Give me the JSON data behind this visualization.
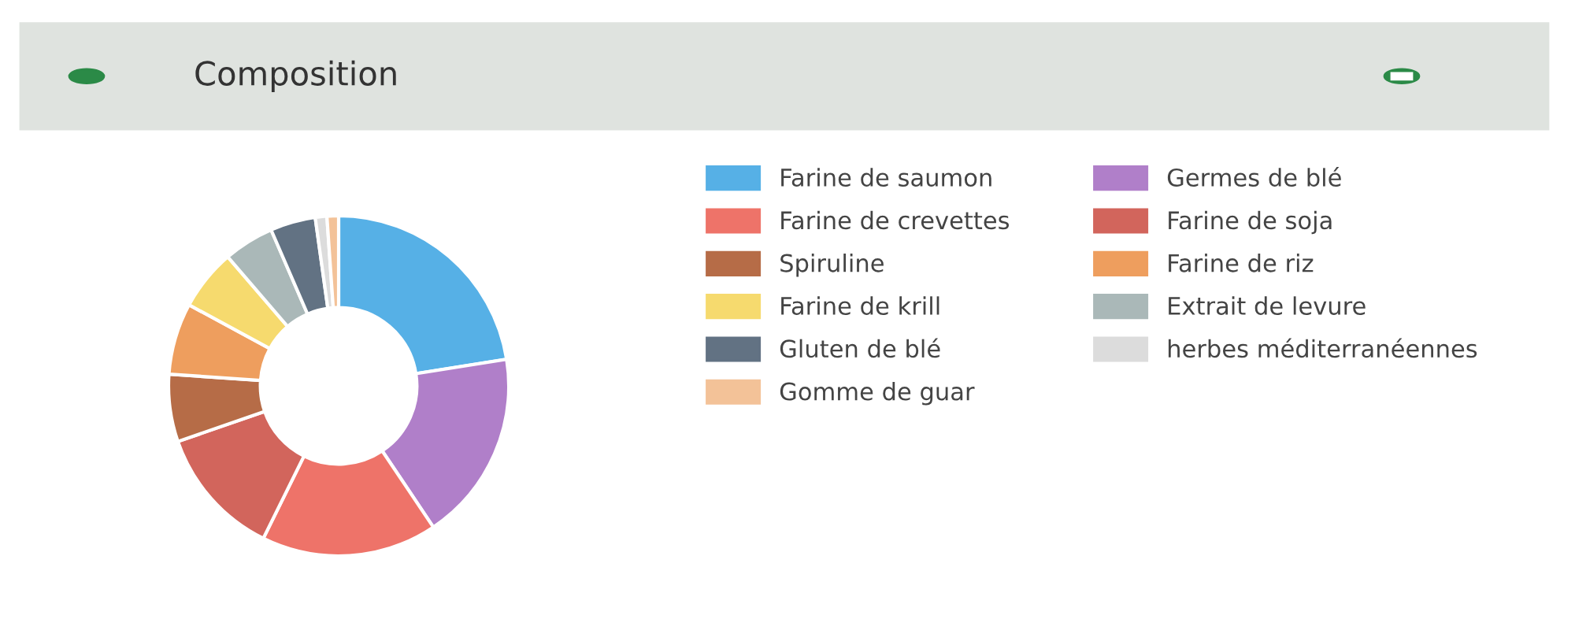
{
  "chart_data": {
    "type": "donut",
    "title": "Composition",
    "categories": [
      "Farine de saumon",
      "Germes de blé",
      "Farine de crevettes",
      "Farine de soja",
      "Spiruline",
      "Farine de riz",
      "Farine de krill",
      "Extrait de levure",
      "Gluten de blé",
      "herbes méditerranéennes",
      "Gomme de guar"
    ],
    "values": [
      22.5,
      18.1,
      16.7,
      12.4,
      6.4,
      6.8,
      5.8,
      4.8,
      4.3,
      1.1,
      1.1
    ],
    "colors": [
      "#56b0e6",
      "#b07fc9",
      "#ee7369",
      "#d2655c",
      "#b66c47",
      "#ee9e5e",
      "#f6da6e",
      "#aab8b8",
      "#627283",
      "#dcdcdc",
      "#f3c298"
    ],
    "legend": "right"
  }
}
